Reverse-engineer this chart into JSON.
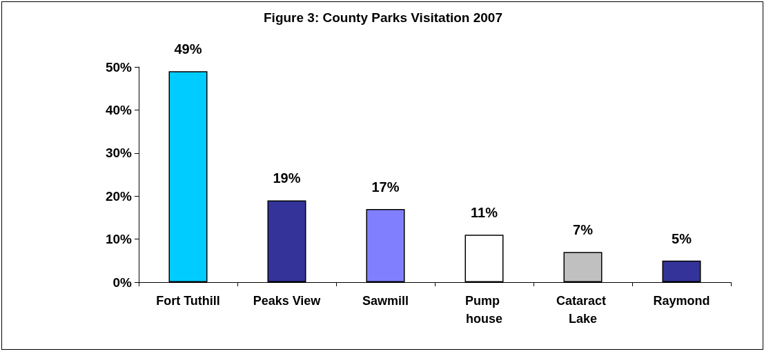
{
  "chart_data": {
    "type": "bar",
    "title": "Figure 3: County Parks Visitation 2007",
    "categories": [
      "Fort Tuthill",
      "Peaks View",
      "Sawmill",
      "Pump house",
      "Cataract Lake",
      "Raymond"
    ],
    "values": [
      49,
      19,
      17,
      11,
      7,
      5
    ],
    "colors": [
      "#00ccff",
      "#333399",
      "#8080ff",
      "#ffffff",
      "#c0c0c0",
      "#333399"
    ],
    "value_labels": [
      "49%",
      "19%",
      "17%",
      "11%",
      "7%",
      "5%"
    ],
    "ylim": [
      0,
      50
    ],
    "yticks": [
      {
        "value": 0,
        "label": "0%"
      },
      {
        "value": 10,
        "label": "10%"
      },
      {
        "value": 20,
        "label": "20%"
      },
      {
        "value": 30,
        "label": "30%"
      },
      {
        "value": 40,
        "label": "40%"
      },
      {
        "value": 50,
        "label": "50%"
      }
    ],
    "grid": false
  }
}
